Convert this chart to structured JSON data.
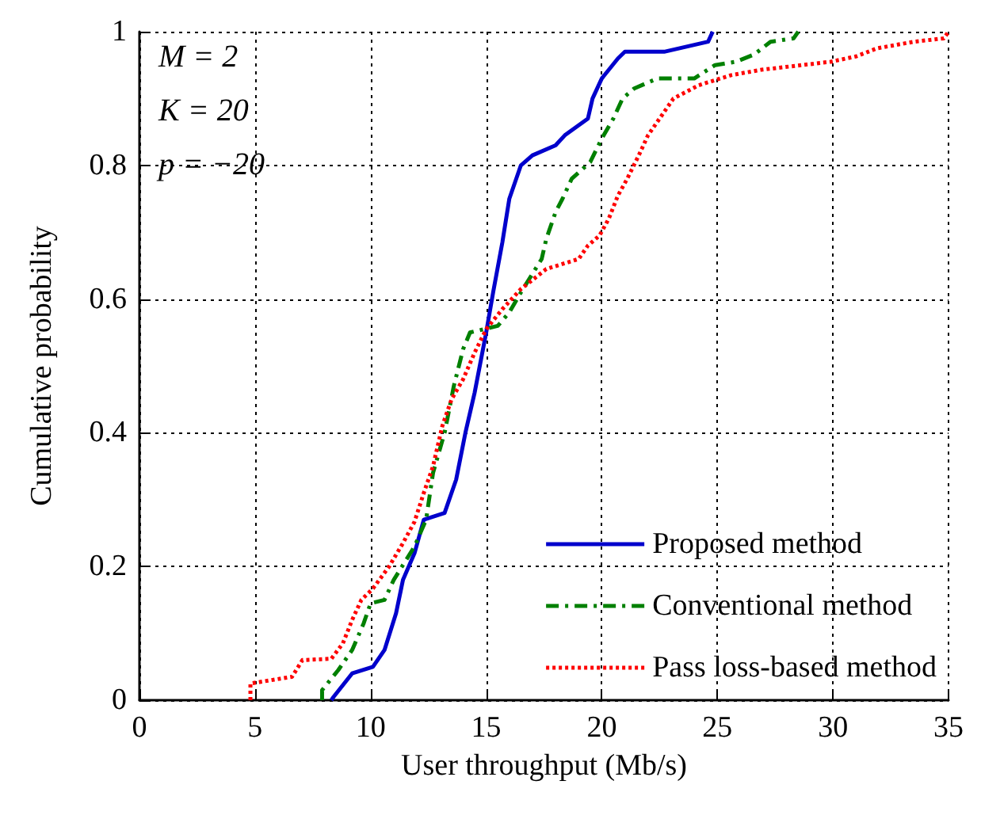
{
  "chart_data": {
    "type": "line",
    "xlabel": "User throughput (Mb/s)",
    "ylabel": "Cumulative probability",
    "xlim": [
      0,
      35
    ],
    "xticks": [
      0,
      5,
      10,
      15,
      20,
      25,
      30,
      35
    ],
    "ylim": [
      0,
      1
    ],
    "yticks": [
      0,
      0.2,
      0.4,
      0.6,
      0.8,
      1
    ],
    "grid": true,
    "legend": "bottom right",
    "marker": "none",
    "annotations": [
      "M = 2",
      "K = 20",
      "p = −20"
    ],
    "series": [
      {
        "name": "Proposed method",
        "color": "#0000cc",
        "line_style": "solid",
        "x": [
          8.3,
          8.4,
          9.2,
          10.1,
          10.6,
          11.1,
          11.4,
          11.9,
          12.3,
          13.2,
          13.7,
          14.1,
          14.5,
          15.0,
          15.3,
          15.7,
          16.0,
          16.5,
          17.0,
          18.0,
          18.4,
          19.4,
          19.6,
          20.0,
          20.7,
          21.0,
          22.7,
          24.6,
          24.8
        ],
        "values": [
          0,
          0.005,
          0.04,
          0.05,
          0.075,
          0.13,
          0.18,
          0.22,
          0.27,
          0.28,
          0.33,
          0.4,
          0.46,
          0.55,
          0.61,
          0.685,
          0.75,
          0.8,
          0.815,
          0.83,
          0.845,
          0.87,
          0.9,
          0.93,
          0.96,
          0.97,
          0.97,
          0.985,
          1
        ]
      },
      {
        "name": "Conventional method",
        "color": "#008000",
        "line_style": "dashed",
        "x": [
          7.9,
          7.9,
          8.6,
          9.2,
          9.7,
          10.0,
          10.6,
          11.0,
          11.9,
          12.4,
          12.7,
          13.2,
          13.6,
          14.0,
          14.3,
          15.5,
          16.0,
          16.5,
          17.4,
          17.6,
          18.0,
          18.3,
          18.7,
          19.5,
          20.0,
          20.5,
          20.9,
          21.4,
          22.4,
          24.0,
          24.9,
          25.8,
          26.6,
          27.3,
          28.3,
          28.5
        ],
        "values": [
          0,
          0.015,
          0.045,
          0.075,
          0.115,
          0.145,
          0.15,
          0.18,
          0.23,
          0.27,
          0.34,
          0.4,
          0.47,
          0.525,
          0.55,
          0.56,
          0.58,
          0.61,
          0.66,
          0.69,
          0.73,
          0.75,
          0.78,
          0.805,
          0.84,
          0.87,
          0.9,
          0.915,
          0.93,
          0.93,
          0.95,
          0.955,
          0.966,
          0.985,
          0.99,
          1
        ]
      },
      {
        "name": "Pass loss-based method",
        "color": "#ff0000",
        "line_style": "dotted",
        "x": [
          4.8,
          4.8,
          6.6,
          7.05,
          8.3,
          8.8,
          9.2,
          9.6,
          10.1,
          10.8,
          11.4,
          11.9,
          12.3,
          12.7,
          13.1,
          13.5,
          14.0,
          14.5,
          15.0,
          15.7,
          16.5,
          17.6,
          19.0,
          19.4,
          19.9,
          20.3,
          20.7,
          21.1,
          21.6,
          22.0,
          22.5,
          23.1,
          24.2,
          25.6,
          26.9,
          29.9,
          31.0,
          31.9,
          33.5,
          34.8,
          35
        ],
        "values": [
          0,
          0.025,
          0.035,
          0.06,
          0.062,
          0.085,
          0.12,
          0.15,
          0.167,
          0.2,
          0.235,
          0.267,
          0.31,
          0.35,
          0.41,
          0.45,
          0.48,
          0.52,
          0.555,
          0.585,
          0.615,
          0.645,
          0.66,
          0.68,
          0.695,
          0.72,
          0.755,
          0.78,
          0.815,
          0.845,
          0.87,
          0.9,
          0.92,
          0.935,
          0.943,
          0.955,
          0.963,
          0.975,
          0.985,
          0.99,
          1
        ]
      }
    ]
  }
}
